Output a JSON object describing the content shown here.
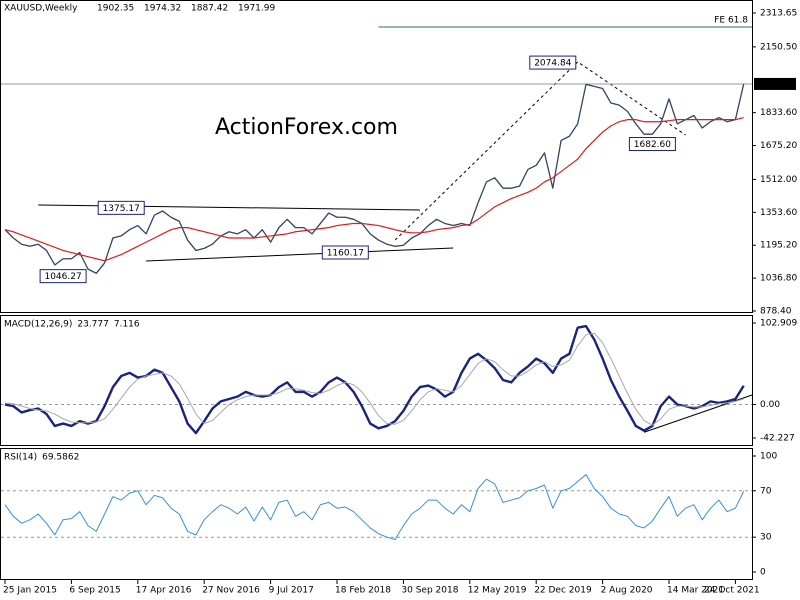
{
  "chart_data": [
    {
      "type": "line",
      "title": "XAUUSD,Weekly",
      "open": 1902.35,
      "high": 1974.32,
      "low": 1887.42,
      "watermark": "ActionForex.com",
      "categories": [
        "25 Jan 2015",
        null,
        null,
        null,
        null,
        null,
        null,
        null,
        "6 Sep 2015",
        null,
        null,
        null,
        null,
        null,
        null,
        null,
        "17 Apr 2016",
        null,
        null,
        null,
        null,
        null,
        null,
        null,
        "27 Nov 2016",
        null,
        null,
        null,
        null,
        null,
        null,
        null,
        "9 Jul 2017",
        null,
        null,
        null,
        null,
        null,
        null,
        null,
        "18 Feb 2018",
        null,
        null,
        null,
        null,
        null,
        null,
        null,
        "30 Sep 2018",
        null,
        null,
        null,
        null,
        null,
        null,
        null,
        "12 May 2019",
        null,
        null,
        null,
        null,
        null,
        null,
        null,
        "22 Dec 2019",
        null,
        null,
        null,
        null,
        null,
        null,
        null,
        "2 Aug 2020",
        null,
        null,
        null,
        null,
        null,
        null,
        null,
        "14 Mar 2021",
        null,
        null,
        null,
        null,
        null,
        null,
        null,
        "24 Oct 2021",
        null
      ],
      "series": [
        {
          "color": "#2f4660",
          "values": [
            1270,
            1230,
            1200,
            1190,
            1200,
            1170,
            1100,
            1130,
            1130,
            1160,
            1080,
            1060,
            1110,
            1230,
            1240,
            1270,
            1290,
            1250,
            1340,
            1360,
            1330,
            1310,
            1220,
            1170,
            1180,
            1200,
            1240,
            1260,
            1250,
            1270,
            1230,
            1270,
            1210,
            1280,
            1320,
            1280,
            1280,
            1250,
            1300,
            1350,
            1330,
            1330,
            1320,
            1300,
            1250,
            1220,
            1200,
            1190,
            1195,
            1230,
            1250,
            1290,
            1320,
            1300,
            1290,
            1300,
            1290,
            1400,
            1500,
            1520,
            1470,
            1470,
            1480,
            1560,
            1580,
            1640,
            1470,
            1700,
            1720,
            1780,
            1970,
            1960,
            1950,
            1880,
            1870,
            1840,
            1780,
            1730,
            1730,
            1780,
            1900,
            1780,
            1800,
            1820,
            1760,
            1790,
            1810,
            1790,
            1800,
            1971.99
          ]
        },
        {
          "color": "#d42020",
          "values": [
            1270,
            1260,
            1245,
            1230,
            1215,
            1200,
            1185,
            1170,
            1160,
            1150,
            1140,
            1130,
            1120,
            1135,
            1150,
            1170,
            1190,
            1210,
            1230,
            1250,
            1270,
            1280,
            1280,
            1270,
            1260,
            1250,
            1240,
            1230,
            1230,
            1230,
            1230,
            1235,
            1240,
            1245,
            1250,
            1260,
            1265,
            1270,
            1275,
            1280,
            1290,
            1295,
            1300,
            1300,
            1295,
            1290,
            1280,
            1270,
            1260,
            1255,
            1255,
            1260,
            1270,
            1275,
            1280,
            1290,
            1295,
            1320,
            1350,
            1380,
            1400,
            1420,
            1435,
            1450,
            1470,
            1500,
            1520,
            1550,
            1580,
            1610,
            1660,
            1700,
            1740,
            1770,
            1790,
            1800,
            1800,
            1790,
            1790,
            1790,
            1795,
            1800,
            1800,
            1800,
            1800,
            1800,
            1800,
            1800,
            1800,
            1810
          ]
        }
      ],
      "ylim": [
        878.4,
        2313.65
      ],
      "yticks": [
        2313.65,
        {
          "value": 2150.5,
          "label": "2150.50"
        },
        {
          "value": 1833.6,
          "label": "1833.60"
        },
        {
          "value": 1675.2,
          "label": "1675.20"
        },
        {
          "value": 1512,
          "label": "1512.00"
        },
        {
          "value": 1353.6,
          "label": "1353.60"
        },
        {
          "value": 1195.2,
          "label": "1195.20"
        },
        {
          "value": 1036.8,
          "label": "1036.80"
        },
        {
          "value": 878.4,
          "label": "878.40"
        }
      ],
      "grid": false,
      "fe_level": {
        "label": "FE 61.8",
        "value": 2246,
        "from": 45
      },
      "annotations": [
        {
          "x": 66,
          "value": 2074.84,
          "label": "2074.84"
        },
        {
          "x": 78,
          "value": 1682.6,
          "label": "1682.60"
        },
        {
          "x": 14,
          "value": 1375.17,
          "label": "1375.17"
        },
        {
          "x": 41,
          "value": 1160.17,
          "label": "1160.17"
        },
        {
          "x": 7,
          "value": 1046.27,
          "label": "1046.27"
        }
      ],
      "trendlines": [
        {
          "x": [
            4,
            50
          ],
          "y": [
            1389,
            1365
          ],
          "dashed": false
        },
        {
          "x": [
            17,
            54
          ],
          "y": [
            1119,
            1182
          ],
          "dashed": false
        },
        {
          "x": [
            47,
            69,
            82
          ],
          "y": [
            1220,
            2078,
            1726
          ],
          "dashed": true
        }
      ]
    },
    {
      "type": "line",
      "title": "MACD(12,26,9)",
      "series": [
        {
          "color": "#1a237e",
          "width": 2.4,
          "values": [
            0,
            -2,
            -10,
            -7,
            -5,
            -12,
            -27,
            -24,
            -27,
            -21,
            -24,
            -21,
            -2,
            22,
            36,
            40,
            34,
            36,
            44,
            40,
            22,
            4,
            -24,
            -36,
            -21,
            -5,
            4,
            7,
            10,
            16,
            12,
            10,
            12,
            22,
            28,
            16,
            16,
            10,
            16,
            28,
            34,
            28,
            16,
            -2,
            -24,
            -30,
            -27,
            -21,
            -8,
            10,
            22,
            24,
            19,
            10,
            16,
            40,
            58,
            64,
            56,
            46,
            31,
            28,
            40,
            48,
            58,
            52,
            40,
            58,
            64,
            97,
            99,
            82,
            58,
            31,
            10,
            -8,
            -27,
            -33,
            -27,
            -2,
            10,
            0,
            -2,
            -5,
            -2,
            4,
            2,
            4,
            7,
            23.777
          ]
        },
        {
          "color": "#a8a8a8",
          "width": 1,
          "values": [
            2,
            1,
            -2,
            -5,
            -7,
            -8,
            -12,
            -18,
            -22,
            -23,
            -23,
            -22,
            -18,
            -6,
            8,
            22,
            32,
            36,
            38,
            40,
            36,
            26,
            8,
            -12,
            -24,
            -20,
            -10,
            0,
            6,
            10,
            12,
            12,
            12,
            15,
            20,
            20,
            18,
            15,
            14,
            18,
            24,
            28,
            25,
            16,
            2,
            -14,
            -24,
            -25,
            -20,
            -8,
            6,
            16,
            20,
            18,
            16,
            24,
            38,
            52,
            58,
            54,
            44,
            36,
            36,
            42,
            50,
            54,
            48,
            50,
            56,
            74,
            88,
            90,
            78,
            58,
            36,
            14,
            -6,
            -20,
            -26,
            -18,
            -6,
            -2,
            -2,
            -3,
            -3,
            -1,
            1,
            2,
            4,
            7.116
          ]
        }
      ],
      "ylim": [
        -42.227,
        102.909
      ],
      "yticks": [
        102.909,
        {
          "value": 0,
          "label": "0.00"
        },
        -42.227
      ],
      "grid": true,
      "trendlines": [
        {
          "x": [
            77,
            90
          ],
          "y": [
            -35,
            12
          ],
          "dashed": false
        }
      ]
    },
    {
      "type": "line",
      "title": "RSI(14)",
      "series": [
        {
          "color": "#3a8fd8",
          "width": 1,
          "values": [
            58,
            48,
            42,
            45,
            50,
            42,
            32,
            45,
            46,
            52,
            40,
            35,
            50,
            65,
            62,
            68,
            70,
            58,
            66,
            64,
            55,
            50,
            35,
            32,
            45,
            52,
            58,
            55,
            50,
            56,
            44,
            56,
            45,
            60,
            62,
            48,
            52,
            45,
            58,
            60,
            55,
            56,
            52,
            45,
            38,
            33,
            30,
            28,
            40,
            50,
            55,
            62,
            62,
            55,
            50,
            58,
            52,
            72,
            80,
            76,
            60,
            62,
            64,
            70,
            72,
            75,
            55,
            70,
            72,
            78,
            84,
            72,
            65,
            55,
            50,
            48,
            40,
            38,
            44,
            55,
            65,
            48,
            55,
            58,
            45,
            55,
            62,
            52,
            55,
            69.5862
          ]
        }
      ],
      "ylim": [
        0,
        100
      ],
      "yticks": [
        100,
        70,
        30,
        0
      ],
      "grid": true
    }
  ]
}
